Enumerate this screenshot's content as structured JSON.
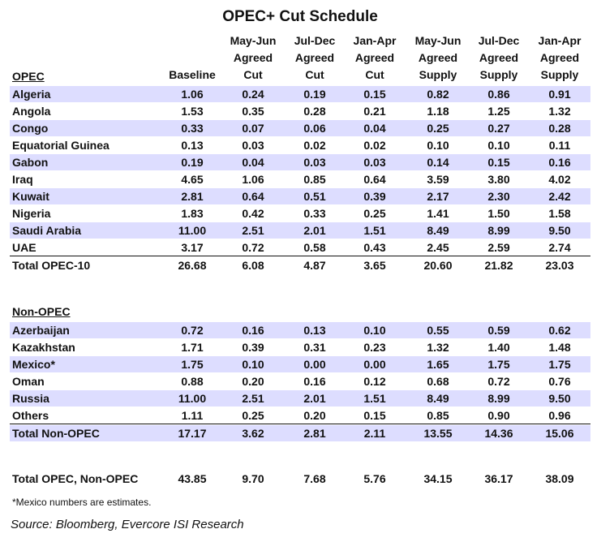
{
  "chart_data": {
    "type": "table",
    "title": "OPEC+ Cut Schedule",
    "columns": [
      [
        "Baseline"
      ],
      [
        "May-Jun",
        "Agreed",
        "Cut"
      ],
      [
        "Jul-Dec",
        "Agreed",
        "Cut"
      ],
      [
        "Jan-Apr",
        "Agreed",
        "Cut"
      ],
      [
        "May-Jun",
        "Agreed",
        "Supply"
      ],
      [
        "Jul-Dec",
        "Agreed",
        "Supply"
      ],
      [
        "Jan-Apr",
        "Agreed",
        "Supply"
      ]
    ],
    "sections": [
      {
        "label": "OPEC",
        "rows": [
          {
            "name": "Algeria",
            "values": [
              "1.06",
              "0.24",
              "0.19",
              "0.15",
              "0.82",
              "0.86",
              "0.91"
            ]
          },
          {
            "name": "Angola",
            "values": [
              "1.53",
              "0.35",
              "0.28",
              "0.21",
              "1.18",
              "1.25",
              "1.32"
            ]
          },
          {
            "name": "Congo",
            "values": [
              "0.33",
              "0.07",
              "0.06",
              "0.04",
              "0.25",
              "0.27",
              "0.28"
            ]
          },
          {
            "name": "Equatorial Guinea",
            "values": [
              "0.13",
              "0.03",
              "0.02",
              "0.02",
              "0.10",
              "0.10",
              "0.11"
            ]
          },
          {
            "name": "Gabon",
            "values": [
              "0.19",
              "0.04",
              "0.03",
              "0.03",
              "0.14",
              "0.15",
              "0.16"
            ]
          },
          {
            "name": "Iraq",
            "values": [
              "4.65",
              "1.06",
              "0.85",
              "0.64",
              "3.59",
              "3.80",
              "4.02"
            ]
          },
          {
            "name": "Kuwait",
            "values": [
              "2.81",
              "0.64",
              "0.51",
              "0.39",
              "2.17",
              "2.30",
              "2.42"
            ]
          },
          {
            "name": "Nigeria",
            "values": [
              "1.83",
              "0.42",
              "0.33",
              "0.25",
              "1.41",
              "1.50",
              "1.58"
            ]
          },
          {
            "name": "Saudi Arabia",
            "values": [
              "11.00",
              "2.51",
              "2.01",
              "1.51",
              "8.49",
              "8.99",
              "9.50"
            ]
          },
          {
            "name": "UAE",
            "values": [
              "3.17",
              "0.72",
              "0.58",
              "0.43",
              "2.45",
              "2.59",
              "2.74"
            ]
          }
        ],
        "total": {
          "name": "Total OPEC-10",
          "values": [
            "26.68",
            "6.08",
            "4.87",
            "3.65",
            "20.60",
            "21.82",
            "23.03"
          ]
        }
      },
      {
        "label": "Non-OPEC",
        "rows": [
          {
            "name": "Azerbaijan",
            "values": [
              "0.72",
              "0.16",
              "0.13",
              "0.10",
              "0.55",
              "0.59",
              "0.62"
            ]
          },
          {
            "name": "Kazakhstan",
            "values": [
              "1.71",
              "0.39",
              "0.31",
              "0.23",
              "1.32",
              "1.40",
              "1.48"
            ]
          },
          {
            "name": "Mexico*",
            "values": [
              "1.75",
              "0.10",
              "0.00",
              "0.00",
              "1.65",
              "1.75",
              "1.75"
            ]
          },
          {
            "name": "Oman",
            "values": [
              "0.88",
              "0.20",
              "0.16",
              "0.12",
              "0.68",
              "0.72",
              "0.76"
            ]
          },
          {
            "name": "Russia",
            "values": [
              "11.00",
              "2.51",
              "2.01",
              "1.51",
              "8.49",
              "8.99",
              "9.50"
            ]
          },
          {
            "name": "Others",
            "values": [
              "1.11",
              "0.25",
              "0.20",
              "0.15",
              "0.85",
              "0.90",
              "0.96"
            ]
          }
        ],
        "total": {
          "name": "Total Non-OPEC",
          "values": [
            "17.17",
            "3.62",
            "2.81",
            "2.11",
            "13.55",
            "14.36",
            "15.06"
          ]
        }
      }
    ],
    "grand_total": {
      "name": "Total OPEC, Non-OPEC",
      "values": [
        "43.85",
        "9.70",
        "7.68",
        "5.76",
        "34.15",
        "36.17",
        "38.09"
      ]
    },
    "footnote": "*Mexico numbers are estimates.",
    "source": "Source: Bloomberg, Evercore ISI Research",
    "shade_color": "#ddddff"
  }
}
